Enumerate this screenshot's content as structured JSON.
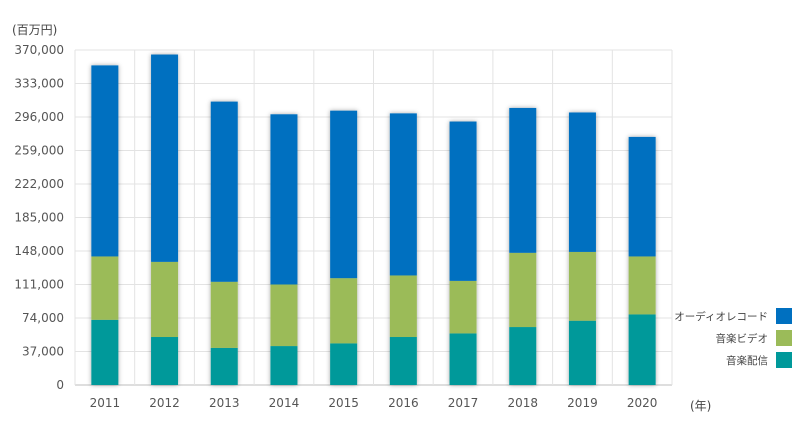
{
  "chart_data": {
    "type": "bar",
    "stacked": true,
    "y_unit_label": "(百万円)",
    "x_unit_label": "(年)",
    "categories": [
      "2011",
      "2012",
      "2013",
      "2014",
      "2015",
      "2016",
      "2017",
      "2018",
      "2019",
      "2020"
    ],
    "series": [
      {
        "name": "音楽配信",
        "color": "#00999a",
        "values": [
          72000,
          53000,
          41000,
          43000,
          46000,
          53000,
          57000,
          64000,
          71000,
          78000
        ]
      },
      {
        "name": "音楽ビデオ",
        "color": "#9bbb59",
        "values": [
          70000,
          83000,
          73000,
          68000,
          72000,
          68000,
          58000,
          82000,
          76000,
          64000
        ]
      },
      {
        "name": "オーディオレコード",
        "color": "#0070c0",
        "values": [
          211000,
          229000,
          199000,
          188000,
          185000,
          179000,
          176000,
          160000,
          154000,
          132000
        ]
      }
    ],
    "ylim": [
      0,
      370000
    ],
    "yticks": [
      "0",
      "37,000",
      "74,000",
      "111,000",
      "148,000",
      "185,000",
      "222,000",
      "259,000",
      "296,000",
      "333,000",
      "370,000"
    ],
    "grid": true,
    "legend_position": "right",
    "legend_order": [
      "オーディオレコード",
      "音楽ビデオ",
      "音楽配信"
    ]
  }
}
